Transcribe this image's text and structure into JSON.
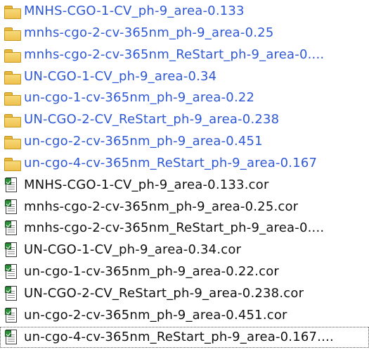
{
  "files": [
    {
      "type": "folder",
      "icon": "folder-icon",
      "name": "MNHS-CGO-1-CV_ph-9_area-0.133"
    },
    {
      "type": "folder",
      "icon": "folder-icon",
      "name": "mnhs-cgo-2-cv-365nm_ph-9_area-0.25"
    },
    {
      "type": "folder",
      "icon": "folder-icon",
      "name": "mnhs-cgo-2-cv-365nm_ReStart_ph-9_area-0...."
    },
    {
      "type": "folder",
      "icon": "folder-icon",
      "name": "UN-CGO-1-CV_ph-9_area-0.34"
    },
    {
      "type": "folder",
      "icon": "folder-icon",
      "name": "un-cgo-1-cv-365nm_ph-9_area-0.22"
    },
    {
      "type": "folder",
      "icon": "folder-icon",
      "name": "UN-CGO-2-CV_ReStart_ph-9_area-0.238"
    },
    {
      "type": "folder",
      "icon": "folder-icon",
      "name": "un-cgo-2-cv-365nm_ph-9_area-0.451"
    },
    {
      "type": "folder",
      "icon": "folder-icon",
      "name": "un-cgo-4-cv-365nm_ReStart_ph-9_area-0.167"
    },
    {
      "type": "file",
      "icon": "cor-file-icon",
      "name": "MNHS-CGO-1-CV_ph-9_area-0.133.cor"
    },
    {
      "type": "file",
      "icon": "cor-file-icon",
      "name": "mnhs-cgo-2-cv-365nm_ph-9_area-0.25.cor"
    },
    {
      "type": "file",
      "icon": "cor-file-icon",
      "name": "mnhs-cgo-2-cv-365nm_ReStart_ph-9_area-0...."
    },
    {
      "type": "file",
      "icon": "cor-file-icon",
      "name": "UN-CGO-1-CV_ph-9_area-0.34.cor"
    },
    {
      "type": "file",
      "icon": "cor-file-icon",
      "name": "un-cgo-1-cv-365nm_ph-9_area-0.22.cor"
    },
    {
      "type": "file",
      "icon": "cor-file-icon",
      "name": "UN-CGO-2-CV_ReStart_ph-9_area-0.238.cor"
    },
    {
      "type": "file",
      "icon": "cor-file-icon",
      "name": "un-cgo-2-cv-365nm_ph-9_area-0.451.cor"
    },
    {
      "type": "file",
      "icon": "cor-file-icon",
      "name": "un-cgo-4-cv-365nm_ReStart_ph-9_area-0.167...."
    }
  ],
  "colors": {
    "folder_text": "#2e58d6",
    "file_text": "#111111"
  }
}
